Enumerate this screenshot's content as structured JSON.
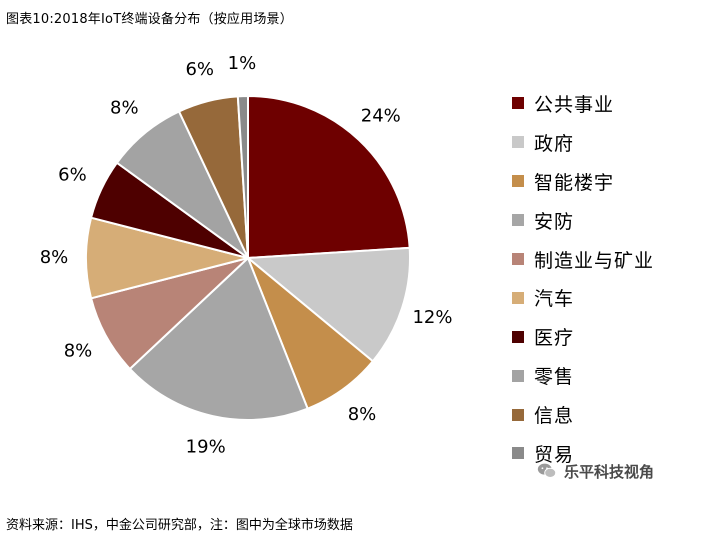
{
  "title": "图表10:2018年IoT终端设备分布（按应用场景）",
  "footer": "资料来源：IHS，中金公司研究部，注：图中为全球市场数据",
  "watermark": "乐平科技视角",
  "chart_data": {
    "type": "pie",
    "start_angle_deg": 0,
    "direction": "clockwise",
    "slices": [
      {
        "label": "公共事业",
        "value": 24,
        "display": "24%",
        "color": "#6e0000"
      },
      {
        "label": "政府",
        "value": 12,
        "display": "12%",
        "color": "#c9c9c9"
      },
      {
        "label": "智能楼宇",
        "value": 8,
        "display": "8%",
        "color": "#c48e4b"
      },
      {
        "label": "安防",
        "value": 19,
        "display": "19%",
        "color": "#a6a6a6"
      },
      {
        "label": "制造业与矿业",
        "value": 8,
        "display": "8%",
        "color": "#b88477"
      },
      {
        "label": "汽车",
        "value": 8,
        "display": "8%",
        "color": "#d6ad77"
      },
      {
        "label": "医疗",
        "value": 6,
        "display": "6%",
        "color": "#4e0000"
      },
      {
        "label": "零售",
        "value": 8,
        "display": "8%",
        "color": "#a3a3a3"
      },
      {
        "label": "信息",
        "value": 6,
        "display": "6%",
        "color": "#96693a"
      },
      {
        "label": "贸易",
        "value": 1,
        "display": "1%",
        "color": "#8a8a8a"
      }
    ],
    "legend_position": "right"
  }
}
